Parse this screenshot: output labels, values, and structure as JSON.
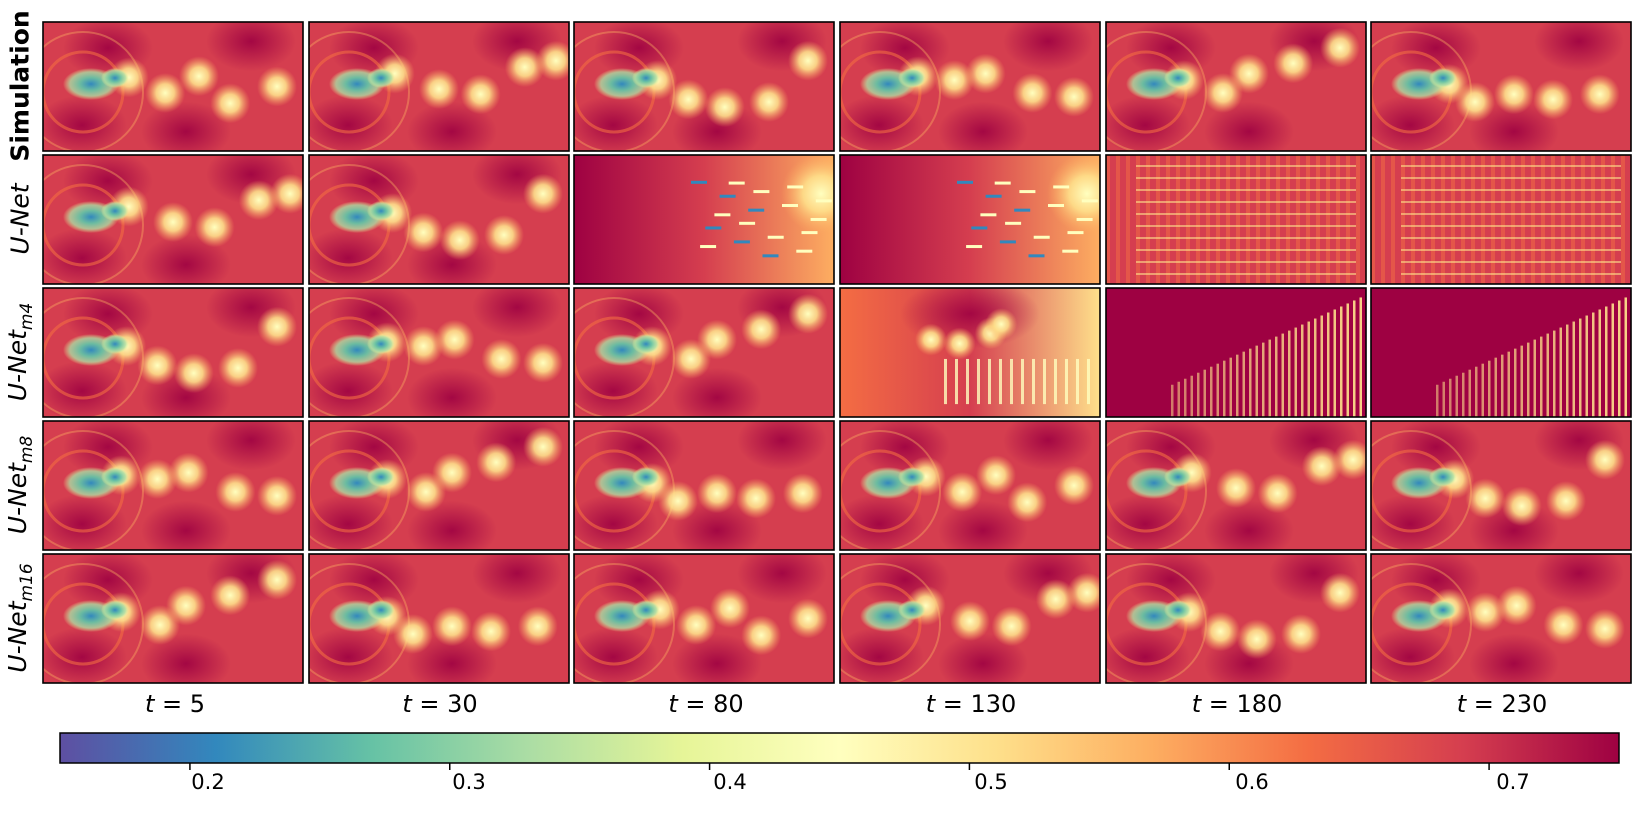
{
  "rows": [
    {
      "key": "sim",
      "label": "Simulation",
      "sub": ""
    },
    {
      "key": "unet",
      "label": "U-Net",
      "sub": ""
    },
    {
      "key": "m4",
      "label": "U-Net",
      "sub": "m4"
    },
    {
      "key": "m8",
      "label": "U-Net",
      "sub": "m8"
    },
    {
      "key": "m16",
      "label": "U-Net",
      "sub": "m16"
    }
  ],
  "columns": [
    {
      "var": "t",
      "eq": " = ",
      "value": "5"
    },
    {
      "var": "t",
      "eq": " = ",
      "value": "30"
    },
    {
      "var": "t",
      "eq": " = ",
      "value": "80"
    },
    {
      "var": "t",
      "eq": " = ",
      "value": "130"
    },
    {
      "var": "t",
      "eq": " = ",
      "value": "180"
    },
    {
      "var": "t",
      "eq": " = ",
      "value": "230"
    }
  ],
  "colorbar": {
    "range": [
      0.15,
      0.75
    ],
    "ticks": [
      "0.2",
      "0.3",
      "0.4",
      "0.5",
      "0.6",
      "0.7"
    ],
    "tick_values": [
      0.2,
      0.3,
      0.4,
      0.5,
      0.6,
      0.7
    ],
    "colors": [
      "#5e4fa2",
      "#3288bd",
      "#66c2a5",
      "#abdda4",
      "#e6f598",
      "#ffffbf",
      "#fee08b",
      "#fdae61",
      "#f46d43",
      "#d53e4f",
      "#9e0142"
    ]
  },
  "panel_styles": {
    "sim": [
      "good",
      "good",
      "good",
      "good",
      "good",
      "good"
    ],
    "unet": [
      "good",
      "good",
      "fail-a",
      "fail-a",
      "fail-b",
      "fail-b"
    ],
    "m4": [
      "good",
      "good",
      "good",
      "fail-c",
      "fail-d",
      "fail-d"
    ],
    "m8": [
      "good",
      "good",
      "good",
      "good",
      "good",
      "good"
    ],
    "m16": [
      "good",
      "good",
      "good",
      "good",
      "good",
      "good"
    ]
  }
}
